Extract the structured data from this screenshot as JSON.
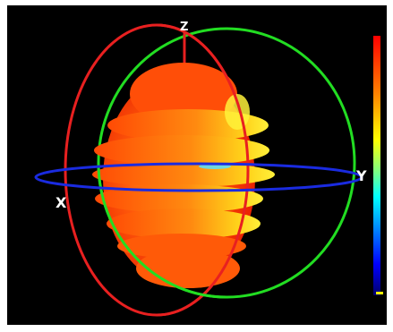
{
  "axes": {
    "x_label": "X",
    "y_label": "Y",
    "z_label": "Z"
  },
  "colors": {
    "background": "#000000",
    "frame": "#ffffff",
    "ring_xz": "#e82020",
    "ring_yz": "#22dd22",
    "ring_xy": "#1a2be0",
    "pattern_core": "#ff3000",
    "pattern_mid": "#ff8c00",
    "pattern_high": "#ffe600",
    "pattern_peak": "#00e0ff"
  },
  "colorbar": {
    "orientation": "vertical",
    "gradient": [
      "#ff0000",
      "#ff8000",
      "#ffff00",
      "#80ff80",
      "#00ffff",
      "#0080ff",
      "#0000ff",
      "#00008b"
    ]
  }
}
